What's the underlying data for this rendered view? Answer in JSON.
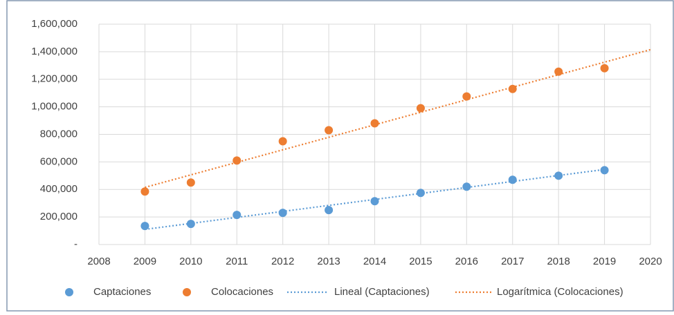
{
  "chart_data": {
    "type": "scatter",
    "xlim": [
      2008,
      2020
    ],
    "xticks": [
      2008,
      2009,
      2010,
      2011,
      2012,
      2013,
      2014,
      2015,
      2016,
      2017,
      2018,
      2019,
      2020
    ],
    "ylim": [
      0,
      1600000
    ],
    "yticks": [
      {
        "value": 0,
        "label": "-"
      },
      {
        "value": 200000,
        "label": "200,000"
      },
      {
        "value": 400000,
        "label": "400,000"
      },
      {
        "value": 600000,
        "label": "600,000"
      },
      {
        "value": 800000,
        "label": "800,000"
      },
      {
        "value": 1000000,
        "label": "1,000,000"
      },
      {
        "value": 1200000,
        "label": "1,200,000"
      },
      {
        "value": 1400000,
        "label": "1,400,000"
      },
      {
        "value": 1600000,
        "label": "1,600,000"
      }
    ],
    "grid": true,
    "legend": "bottom",
    "series": [
      {
        "name": "Captaciones",
        "color": "#5b9bd5",
        "mark": "point",
        "x": [
          2009,
          2010,
          2011,
          2012,
          2013,
          2014,
          2015,
          2016,
          2017,
          2018,
          2019
        ],
        "values": [
          135000,
          150000,
          215000,
          230000,
          250000,
          315000,
          375000,
          420000,
          470000,
          500000,
          540000
        ]
      },
      {
        "name": "Colocaciones",
        "color": "#ed7d31",
        "mark": "point",
        "x": [
          2009,
          2010,
          2011,
          2012,
          2013,
          2014,
          2015,
          2016,
          2017,
          2018,
          2019
        ],
        "values": [
          385000,
          450000,
          610000,
          750000,
          830000,
          880000,
          990000,
          1075000,
          1130000,
          1255000,
          1280000
        ]
      },
      {
        "name": "Lineal (Captaciones)",
        "color": "#5b9bd5",
        "mark": "dotted-line",
        "x": [
          2009,
          2019
        ],
        "values": [
          110000,
          545000
        ]
      },
      {
        "name": "Logarítmica (Colocaciones)",
        "color": "#ed7d31",
        "mark": "dotted-line",
        "x": [
          2009,
          2020
        ],
        "values": [
          415000,
          1415000
        ]
      }
    ]
  }
}
